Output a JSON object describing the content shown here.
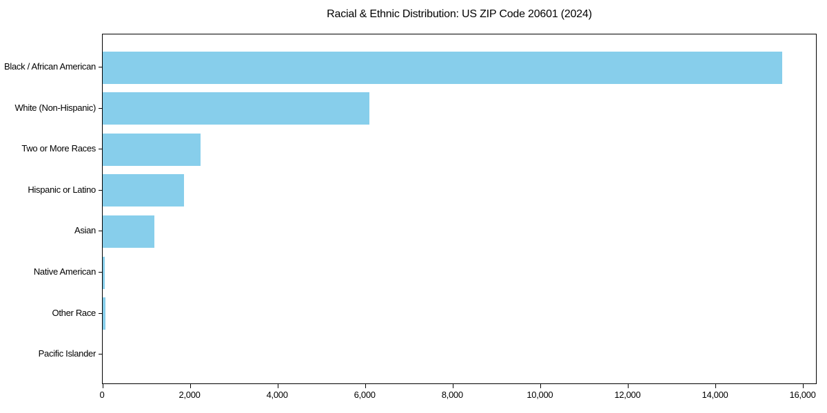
{
  "figure": {
    "title": "Racial & Ethnic Distribution: US ZIP Code 20601 (2024)"
  },
  "chart_data": {
    "type": "bar",
    "orientation": "horizontal",
    "title": "Racial & Ethnic Distribution: US ZIP Code 20601 (2024)",
    "categories": [
      "Black / African American",
      "White (Non-Hispanic)",
      "Two or More Races",
      "Hispanic or Latino",
      "Asian",
      "Native American",
      "Other Race",
      "Pacific Islander"
    ],
    "values": [
      15520,
      6090,
      2240,
      1860,
      1180,
      55,
      65,
      0
    ],
    "xlabel": "",
    "ylabel": "",
    "xlim": [
      0,
      16290
    ],
    "xticks": [
      0,
      2000,
      4000,
      6000,
      8000,
      10000,
      12000,
      14000,
      16000
    ],
    "xtick_labels": [
      "0",
      "2,000",
      "4,000",
      "6,000",
      "8,000",
      "10,000",
      "12,000",
      "14,000",
      "16,000"
    ],
    "bar_color": "#87CEEB",
    "axis_color": "#000000",
    "grid": false,
    "legend": null
  }
}
